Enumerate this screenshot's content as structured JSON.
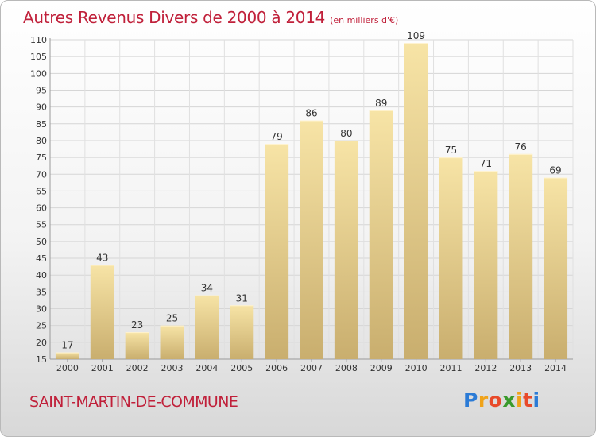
{
  "header": {
    "title": "Autres Revenus Divers de 2000 à 2014",
    "unit": "(en milliers d'€)"
  },
  "footer": {
    "commune": "SAINT-MARTIN-DE-COMMUNE",
    "logo_letters": [
      "P",
      "r",
      "o",
      "x",
      "i",
      "t",
      "i"
    ],
    "logo_colors": [
      "#2b7bd6",
      "#f0a31a",
      "#e84a2a",
      "#3a9a2c",
      "#f0a31a",
      "#e84a2a",
      "#2b7bd6"
    ]
  },
  "chart_data": {
    "type": "bar",
    "title": "Autres Revenus Divers de 2000 à 2014",
    "categories": [
      "2000",
      "2001",
      "2002",
      "2003",
      "2004",
      "2005",
      "2006",
      "2007",
      "2008",
      "2009",
      "2010",
      "2011",
      "2012",
      "2013",
      "2014"
    ],
    "values": [
      17,
      43,
      23,
      25,
      34,
      31,
      79,
      86,
      80,
      89,
      109,
      75,
      71,
      76,
      69
    ],
    "ylim": [
      15,
      110
    ],
    "yticks": [
      15,
      20,
      25,
      30,
      35,
      40,
      45,
      50,
      55,
      60,
      65,
      70,
      75,
      80,
      85,
      90,
      95,
      100,
      105,
      110
    ],
    "grid": true,
    "legend": "none",
    "bar_color_light": "#f7e4a6",
    "bar_color_dark": "#c9ae6e"
  }
}
